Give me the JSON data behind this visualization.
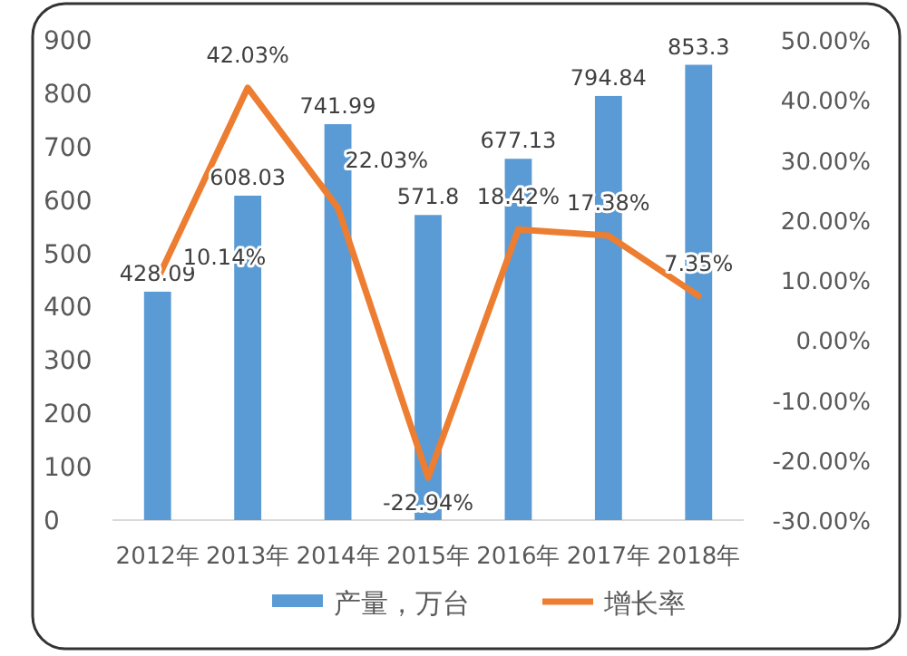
{
  "chart_data": {
    "type": "bar",
    "categories": [
      "2012年",
      "2013年",
      "2014年",
      "2015年",
      "2016年",
      "2017年",
      "2018年"
    ],
    "series": [
      {
        "name": "产量，万台",
        "color": "#5b9bd5",
        "values": [
          428.09,
          608.03,
          741.99,
          571.8,
          677.13,
          794.84,
          853.3
        ],
        "value_labels": [
          "428.09",
          "608.03",
          "741.99",
          "571.8",
          "677.13",
          "794.84",
          "853.3"
        ]
      },
      {
        "name": "增长率",
        "type": "line",
        "axis": "y2",
        "color": "#ed7d31",
        "values": [
          10.14,
          42.03,
          22.03,
          -22.94,
          18.42,
          17.38,
          7.35
        ],
        "value_labels": [
          "10.14%",
          "42.03%",
          "22.03%",
          "-22.94%",
          "18.42%",
          "17.38%",
          "7.35%"
        ]
      }
    ],
    "ylim": [
      0,
      900
    ],
    "yticks": [
      0,
      100,
      200,
      300,
      400,
      500,
      600,
      700,
      800,
      900
    ],
    "y2lim": [
      -30,
      50
    ],
    "y2ticks": [
      {
        "value": -30,
        "label": "-30.00%"
      },
      {
        "value": -20,
        "label": "-20.00%"
      },
      {
        "value": -10,
        "label": "-10.00%"
      },
      {
        "value": 0,
        "label": "0.00%"
      },
      {
        "value": 10,
        "label": "10.00%"
      },
      {
        "value": 20,
        "label": "20.00%"
      },
      {
        "value": 30,
        "label": "30.00%"
      },
      {
        "value": 40,
        "label": "40.00%"
      },
      {
        "value": 50,
        "label": "50.00%"
      }
    ],
    "legend": "bottom",
    "grid": false,
    "marker": "none"
  }
}
